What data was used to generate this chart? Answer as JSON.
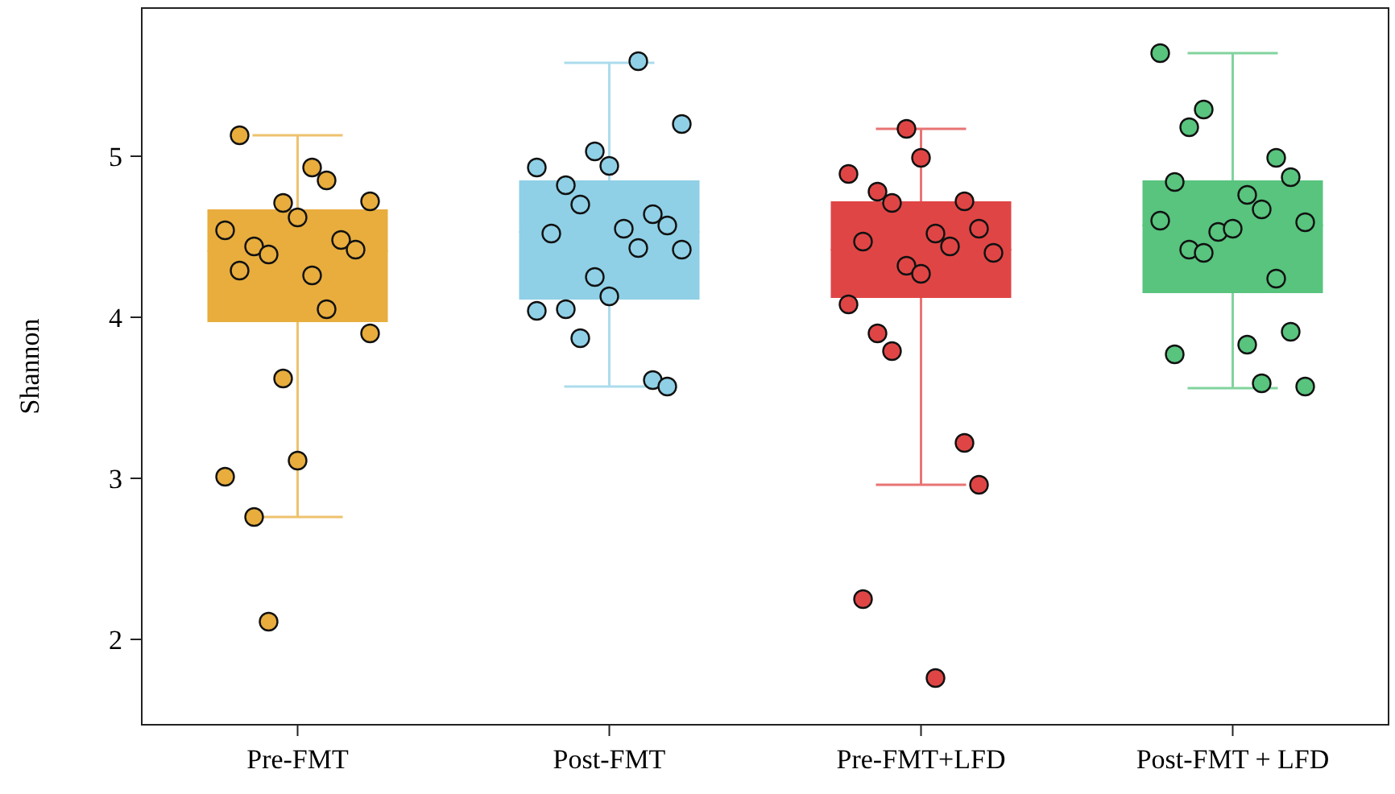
{
  "chart_data": {
    "type": "box",
    "ylabel": "Shannon",
    "categories": [
      "Pre-FMT",
      "Post-FMT",
      "Pre-FMT+LFD",
      "Post-FMT + LFD"
    ],
    "boxes": [
      {
        "low": 2.76,
        "q1": 3.97,
        "median": 4.41,
        "q3": 4.67,
        "high": 5.13
      },
      {
        "low": 3.57,
        "q1": 4.11,
        "median": 4.53,
        "q3": 4.85,
        "high": 5.58
      },
      {
        "low": 2.96,
        "q1": 4.12,
        "median": 4.42,
        "q3": 4.72,
        "high": 5.17
      },
      {
        "low": 3.56,
        "q1": 4.15,
        "median": 4.57,
        "q3": 4.85,
        "high": 5.64
      }
    ],
    "colors": [
      "#e8ad3d",
      "#8fd0e6",
      "#e04545",
      "#58c47e"
    ],
    "series": [
      {
        "type": "scatter",
        "color": "#e8ad3d",
        "x": [
          "Pre-FMT",
          "Pre-FMT",
          "Pre-FMT",
          "Pre-FMT",
          "Pre-FMT",
          "Pre-FMT",
          "Pre-FMT",
          "Pre-FMT",
          "Pre-FMT",
          "Pre-FMT",
          "Pre-FMT",
          "Pre-FMT",
          "Pre-FMT",
          "Pre-FMT",
          "Pre-FMT",
          "Pre-FMT",
          "Pre-FMT",
          "Pre-FMT",
          "Pre-FMT",
          "Pre-FMT"
        ],
        "values": [
          5.13,
          4.93,
          4.85,
          4.72,
          4.71,
          4.62,
          4.54,
          4.44,
          4.39,
          4.48,
          4.42,
          4.29,
          4.26,
          4.05,
          3.9,
          3.62,
          3.11,
          3.01,
          2.76,
          2.11
        ]
      },
      {
        "type": "scatter",
        "color": "#8fd0e6",
        "x": [
          "Post-FMT",
          "Post-FMT",
          "Post-FMT",
          "Post-FMT",
          "Post-FMT",
          "Post-FMT",
          "Post-FMT",
          "Post-FMT",
          "Post-FMT",
          "Post-FMT",
          "Post-FMT",
          "Post-FMT",
          "Post-FMT",
          "Post-FMT",
          "Post-FMT",
          "Post-FMT",
          "Post-FMT",
          "Post-FMT",
          "Post-FMT",
          "Post-FMT"
        ],
        "values": [
          5.59,
          5.2,
          5.03,
          4.94,
          4.93,
          4.82,
          4.7,
          4.64,
          4.57,
          4.52,
          4.55,
          4.43,
          4.42,
          4.25,
          4.13,
          4.04,
          4.05,
          3.87,
          3.61,
          3.57
        ]
      },
      {
        "type": "scatter",
        "color": "#e04545",
        "x": [
          "Pre-FMT+LFD",
          "Pre-FMT+LFD",
          "Pre-FMT+LFD",
          "Pre-FMT+LFD",
          "Pre-FMT+LFD",
          "Pre-FMT+LFD",
          "Pre-FMT+LFD",
          "Pre-FMT+LFD",
          "Pre-FMT+LFD",
          "Pre-FMT+LFD",
          "Pre-FMT+LFD",
          "Pre-FMT+LFD",
          "Pre-FMT+LFD",
          "Pre-FMT+LFD",
          "Pre-FMT+LFD",
          "Pre-FMT+LFD",
          "Pre-FMT+LFD",
          "Pre-FMT+LFD",
          "Pre-FMT+LFD",
          "Pre-FMT+LFD"
        ],
        "values": [
          5.17,
          4.99,
          4.89,
          4.78,
          4.71,
          4.72,
          4.55,
          4.47,
          4.52,
          4.44,
          4.4,
          4.32,
          4.27,
          4.08,
          3.9,
          3.79,
          3.22,
          2.96,
          2.25,
          1.76
        ]
      },
      {
        "type": "scatter",
        "color": "#58c47e",
        "x": [
          "Post-FMT + LFD",
          "Post-FMT + LFD",
          "Post-FMT + LFD",
          "Post-FMT + LFD",
          "Post-FMT + LFD",
          "Post-FMT + LFD",
          "Post-FMT + LFD",
          "Post-FMT + LFD",
          "Post-FMT + LFD",
          "Post-FMT + LFD",
          "Post-FMT + LFD",
          "Post-FMT + LFD",
          "Post-FMT + LFD",
          "Post-FMT + LFD",
          "Post-FMT + LFD",
          "Post-FMT + LFD",
          "Post-FMT + LFD",
          "Post-FMT + LFD",
          "Post-FMT + LFD",
          "Post-FMT + LFD"
        ],
        "values": [
          5.64,
          5.18,
          5.29,
          4.99,
          4.87,
          4.84,
          4.76,
          4.67,
          4.59,
          4.53,
          4.55,
          4.6,
          4.42,
          4.4,
          4.24,
          3.91,
          3.77,
          3.83,
          3.59,
          3.57
        ]
      }
    ],
    "marker": "circle",
    "ylim": [
      1.47,
      5.92
    ],
    "yticks": [
      2,
      3,
      4,
      5
    ],
    "grid": false
  }
}
